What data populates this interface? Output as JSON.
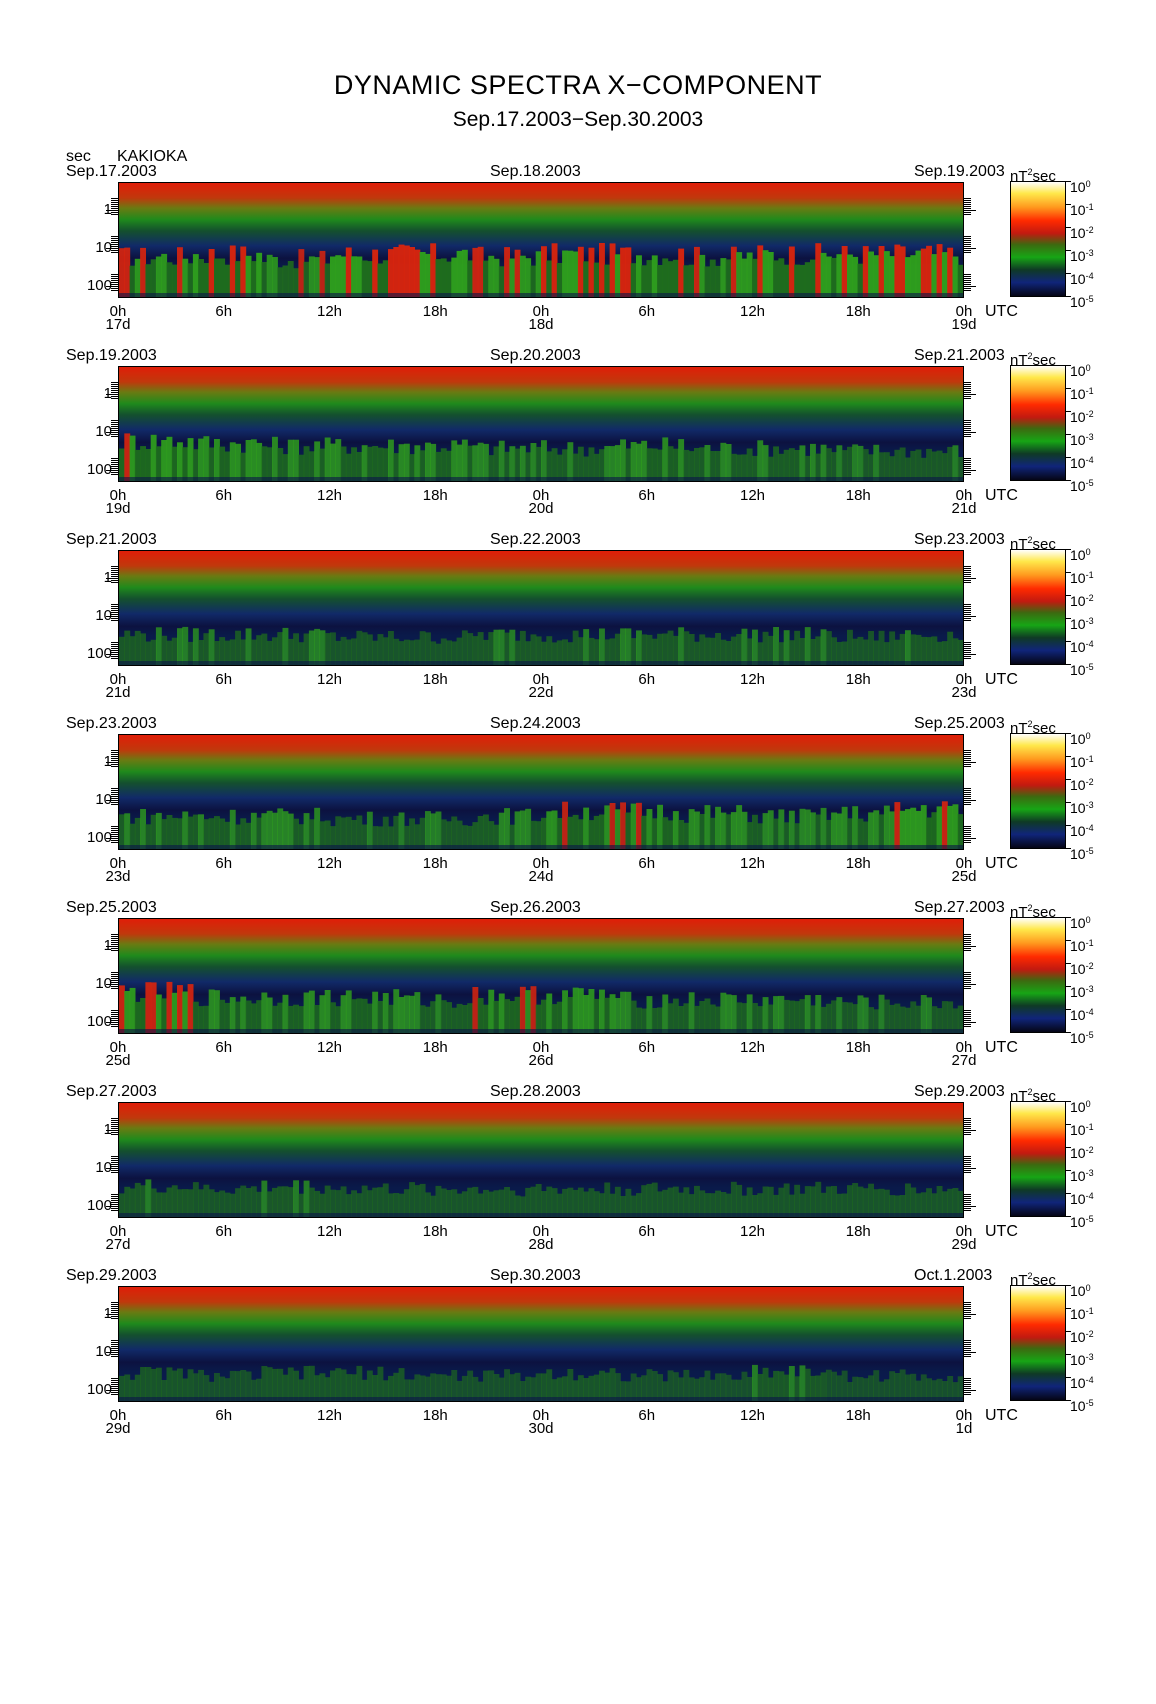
{
  "header": {
    "title": "DYNAMIC SPECTRA X−COMPONENT",
    "subtitle": "Sep.17.2003−Sep.30.2003",
    "y_unit": "sec",
    "station": "KAKIOKA"
  },
  "colorbar": {
    "unit_main": "nT",
    "unit_sup": "2",
    "unit_tail": "sec",
    "base": "10",
    "exponents": [
      "0",
      "-1",
      "-2",
      "-3",
      "-4",
      "-5"
    ]
  },
  "axis": {
    "y_ticks": [
      "1",
      "10",
      "100"
    ],
    "x_ticks": [
      "0h",
      "6h",
      "12h",
      "18h",
      "0h",
      "6h",
      "12h",
      "18h",
      "0h"
    ],
    "x_unit": "UTC"
  },
  "chart_data": [
    {
      "type": "heatmap",
      "date_left": "Sep.17.2003",
      "date_mid": "Sep.18.2003",
      "date_right": "Sep.19.2003",
      "day_labels": [
        "17d",
        "18d",
        "19d"
      ],
      "activity": [
        0.8,
        0.9,
        0.7,
        0.9,
        0.9,
        0.8,
        0.9,
        0.9,
        0.8,
        0.9,
        0.9,
        0.9
      ]
    },
    {
      "type": "heatmap",
      "date_left": "Sep.19.2003",
      "date_mid": "Sep.20.2003",
      "date_right": "Sep.21.2003",
      "day_labels": [
        "19d",
        "20d",
        "21d"
      ],
      "activity": [
        0.8,
        0.7,
        0.6,
        0.6,
        0.6,
        0.5,
        0.5,
        0.6,
        0.5,
        0.5,
        0.4,
        0.4
      ]
    },
    {
      "type": "heatmap",
      "date_left": "Sep.21.2003",
      "date_mid": "Sep.22.2003",
      "date_right": "Sep.23.2003",
      "day_labels": [
        "21d",
        "22d",
        "23d"
      ],
      "activity": [
        0.4,
        0.4,
        0.4,
        0.3,
        0.3,
        0.4,
        0.4,
        0.4,
        0.4,
        0.4,
        0.3,
        0.4
      ]
    },
    {
      "type": "heatmap",
      "date_left": "Sep.23.2003",
      "date_mid": "Sep.24.2003",
      "date_right": "Sep.25.2003",
      "day_labels": [
        "23d",
        "24d",
        "25d"
      ],
      "activity": [
        0.5,
        0.5,
        0.5,
        0.4,
        0.4,
        0.5,
        0.7,
        0.7,
        0.6,
        0.5,
        0.6,
        0.8
      ]
    },
    {
      "type": "heatmap",
      "date_left": "Sep.25.2003",
      "date_mid": "Sep.26.2003",
      "date_right": "Sep.27.2003",
      "day_labels": [
        "25d",
        "26d",
        "27d"
      ],
      "activity": [
        0.8,
        0.6,
        0.6,
        0.6,
        0.5,
        0.7,
        0.7,
        0.5,
        0.5,
        0.5,
        0.4,
        0.4
      ]
    },
    {
      "type": "heatmap",
      "date_left": "Sep.27.2003",
      "date_mid": "Sep.28.2003",
      "date_right": "Sep.29.2003",
      "day_labels": [
        "27d",
        "28d",
        "29d"
      ],
      "activity": [
        0.4,
        0.3,
        0.4,
        0.3,
        0.3,
        0.3,
        0.3,
        0.3,
        0.3,
        0.3,
        0.3,
        0.3
      ]
    },
    {
      "type": "heatmap",
      "date_left": "Sep.29.2003",
      "date_mid": "Sep.30.2003",
      "date_right": "Oct.1.2003",
      "day_labels": [
        "29d",
        "30d",
        "1d"
      ],
      "activity": [
        0.3,
        0.2,
        0.3,
        0.3,
        0.2,
        0.2,
        0.3,
        0.2,
        0.2,
        0.4,
        0.2,
        0.2
      ]
    }
  ]
}
